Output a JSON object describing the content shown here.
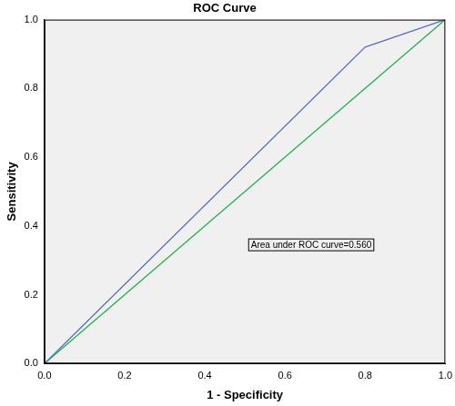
{
  "chart_data": {
    "type": "line",
    "title": "ROC Curve",
    "x_label": "1 - Specificity",
    "y_label": "Sensitivity",
    "annotations": [
      "Area under ROC curve=0.560"
    ],
    "series": [
      {
        "color": "#5b6fbf",
        "x": [
          0,
          0.8,
          1
        ],
        "values": [
          0,
          0.92,
          1
        ]
      },
      {
        "color": "#22b14c",
        "x": [
          0,
          1
        ],
        "values": [
          0,
          1
        ]
      }
    ],
    "xlim": [
      0,
      1
    ],
    "ylim": [
      0,
      1
    ],
    "xticks": [
      {
        "value": 0,
        "label": "0.0"
      },
      {
        "value": 0.2,
        "label": "0.2"
      },
      {
        "value": 0.4,
        "label": "0.4"
      },
      {
        "value": 0.6,
        "label": "0.6"
      },
      {
        "value": 0.8,
        "label": "0.8"
      },
      {
        "value": 1,
        "label": "1.0"
      }
    ],
    "yticks": [
      {
        "value": 0,
        "label": "0.0"
      },
      {
        "value": 0.2,
        "label": "0.2"
      },
      {
        "value": 0.4,
        "label": "0.4"
      },
      {
        "value": 0.6,
        "label": "0.6"
      },
      {
        "value": 0.8,
        "label": "0.8"
      },
      {
        "value": 1,
        "label": "1.0"
      }
    ],
    "grid": false
  }
}
